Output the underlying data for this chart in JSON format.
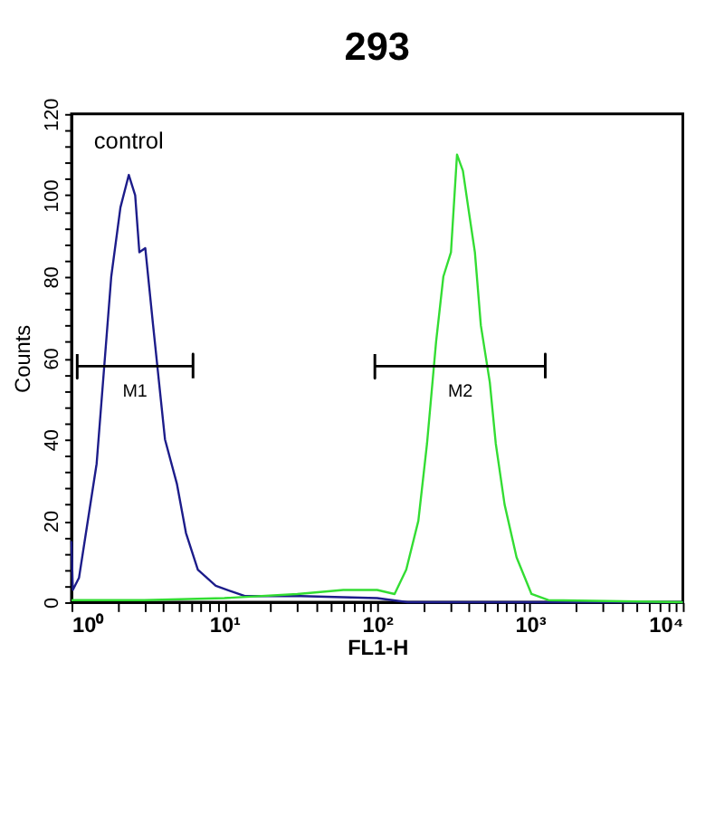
{
  "chart_data": {
    "type": "line",
    "title": "293",
    "xlabel": "FL1-H",
    "ylabel": "Counts",
    "log": "x",
    "xlim": [
      1,
      10000
    ],
    "ylim": [
      0,
      120
    ],
    "xticks": [
      {
        "value": 1,
        "label": "10⁰"
      },
      {
        "value": 2,
        "label": null
      },
      {
        "value": 3,
        "label": null
      },
      {
        "value": 4,
        "label": null
      },
      {
        "value": 5,
        "label": null
      },
      {
        "value": 6,
        "label": null
      },
      {
        "value": 7,
        "label": null
      },
      {
        "value": 8,
        "label": null
      },
      {
        "value": 9,
        "label": null
      },
      {
        "value": 10,
        "label": "10¹"
      },
      {
        "value": 20,
        "label": null
      },
      {
        "value": 30,
        "label": null
      },
      {
        "value": 40,
        "label": null
      },
      {
        "value": 50,
        "label": null
      },
      {
        "value": 60,
        "label": null
      },
      {
        "value": 70,
        "label": null
      },
      {
        "value": 80,
        "label": null
      },
      {
        "value": 90,
        "label": null
      },
      {
        "value": 100,
        "label": "10²"
      },
      {
        "value": 200,
        "label": null
      },
      {
        "value": 300,
        "label": null
      },
      {
        "value": 400,
        "label": null
      },
      {
        "value": 500,
        "label": null
      },
      {
        "value": 600,
        "label": null
      },
      {
        "value": 700,
        "label": null
      },
      {
        "value": 800,
        "label": null
      },
      {
        "value": 900,
        "label": null
      },
      {
        "value": 1000,
        "label": "10³"
      },
      {
        "value": 2000,
        "label": null
      },
      {
        "value": 3000,
        "label": null
      },
      {
        "value": 4000,
        "label": null
      },
      {
        "value": 5000,
        "label": null
      },
      {
        "value": 6000,
        "label": null
      },
      {
        "value": 7000,
        "label": null
      },
      {
        "value": 8000,
        "label": null
      },
      {
        "value": 9000,
        "label": null
      },
      {
        "value": 10000,
        "label": "10⁴"
      }
    ],
    "yticks": [
      0,
      {
        "value": 4,
        "label": null
      },
      {
        "value": 8,
        "label": null
      },
      {
        "value": 12,
        "label": null
      },
      {
        "value": 16,
        "label": null
      },
      20,
      {
        "value": 24,
        "label": null
      },
      {
        "value": 28,
        "label": null
      },
      {
        "value": 32,
        "label": null
      },
      {
        "value": 36,
        "label": null
      },
      40,
      {
        "value": 44,
        "label": null
      },
      {
        "value": 48,
        "label": null
      },
      {
        "value": 52,
        "label": null
      },
      {
        "value": 56,
        "label": null
      },
      60,
      {
        "value": 64,
        "label": null
      },
      {
        "value": 68,
        "label": null
      },
      {
        "value": 72,
        "label": null
      },
      {
        "value": 76,
        "label": null
      },
      80,
      {
        "value": 84,
        "label": null
      },
      {
        "value": 88,
        "label": null
      },
      {
        "value": 92,
        "label": null
      },
      {
        "value": 96,
        "label": null
      },
      100,
      {
        "value": 104,
        "label": null
      },
      {
        "value": 108,
        "label": null
      },
      {
        "value": 112,
        "label": null
      },
      {
        "value": 116,
        "label": null
      },
      120
    ],
    "grid": false,
    "legend": false,
    "marker": "none",
    "line_style": "solid",
    "series": [
      {
        "name": "control",
        "color": "#1c1c8a",
        "x": [
          1,
          1.02,
          1.12,
          1.46,
          1.82,
          2.09,
          2.37,
          2.61,
          2.78,
          3.04,
          3.42,
          3.74,
          4.09,
          4.9,
          5.61,
          6.71,
          8.79,
          13.6,
          31.6,
          100,
          158,
          10000
        ],
        "values": [
          15,
          3,
          6,
          34,
          80,
          97,
          105,
          100,
          86,
          87,
          68,
          54,
          40,
          29,
          17,
          8,
          4,
          1.5,
          1.5,
          1,
          0,
          0
        ]
      },
      {
        "color": "#33dd33",
        "x": [
          1,
          3,
          10,
          30,
          60,
          100,
          130,
          155,
          186,
          212,
          243,
          271,
          304,
          333,
          364,
          398,
          436,
          477,
          546,
          597,
          682,
          817,
          1023,
          1318,
          10000
        ],
        "values": [
          0.5,
          0.5,
          1,
          2,
          3,
          3,
          2,
          8,
          20,
          39,
          64,
          80,
          86,
          110,
          106,
          96,
          86,
          68,
          54,
          39,
          24,
          11,
          2,
          0.5,
          0
        ]
      },
      {
        "color": "#000000",
        "type": "line",
        "x": [
          1.09,
          1.09,
          1.09,
          6.24,
          6.24,
          6.24
        ],
        "values": [
          61,
          55,
          58,
          58,
          61,
          55
        ]
      },
      {
        "color": "#000000",
        "type": "line",
        "x": [
          96.6,
          96.6,
          96.6,
          1259,
          1259,
          1259
        ],
        "values": [
          61,
          55,
          58,
          58,
          61,
          55
        ]
      }
    ],
    "annotations": [
      {
        "text": "M1",
        "x": 2.6,
        "y": 58
      },
      {
        "text": "M2",
        "x": 350,
        "y": 58
      }
    ]
  }
}
